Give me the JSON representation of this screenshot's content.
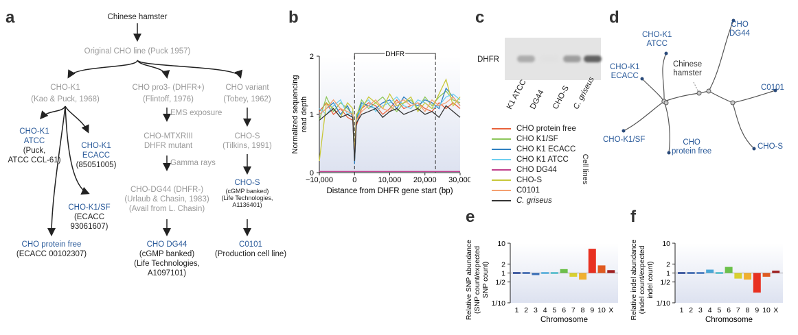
{
  "panel_labels": [
    "a",
    "b",
    "c",
    "d",
    "e",
    "f"
  ],
  "panel_a": {
    "root": "Chinese hamster",
    "original": "Original CHO line (Puck 1957)",
    "chok1": [
      "CHO-K1",
      "(Kao & Puck, 1968)"
    ],
    "pro3": [
      "CHO pro3- (DHFR+)",
      "(Flintoff, 1976)"
    ],
    "variant": [
      "CHO variant",
      "(Tobey, 1962)"
    ],
    "atcc": [
      "CHO-K1",
      "ATCC",
      "(Puck,",
      "ATCC CCL-61)"
    ],
    "ecacc": [
      "CHO-K1",
      "ECACC",
      "(85051005)"
    ],
    "k1sf": [
      "CHO-K1/SF",
      "(ECACC",
      "93061607)"
    ],
    "protein_free": [
      "CHO protein free",
      "(ECACC 00102307)"
    ],
    "ems": "EMS exposure",
    "mtx": [
      "CHO-MTXRIII",
      "DHFR mutant"
    ],
    "gamma": "Gamma rays",
    "dg44_mid": [
      "CHO-DG44 (DHFR-)",
      "(Urlaub & Chasin, 1983)",
      "(Avail from L. Chasin)"
    ],
    "dg44": [
      "CHO DG44",
      "(cGMP banked)",
      "(Life Technologies,",
      "A1097101)"
    ],
    "chos_mid": [
      "CHO-S",
      "(Tilkins, 1991)"
    ],
    "chos": [
      "CHO-S",
      "(cGMP banked)",
      "(Life Technologies,",
      "A1136401)"
    ],
    "c0101": [
      "C0101",
      "(Production cell line)"
    ]
  },
  "panel_c": {
    "row_label": "DHFR",
    "lanes": [
      "K1 ATCC",
      "DG44",
      "CHO-S",
      "C. griseus"
    ],
    "band_intensity": [
      0.35,
      0.0,
      0.45,
      0.85
    ],
    "legend_title": "Cell lines",
    "legend": [
      {
        "name": "CHO protein free",
        "color": "#e8603a"
      },
      {
        "name": "CHO K1/SF",
        "color": "#8cc65a"
      },
      {
        "name": "CHO K1 ECACC",
        "color": "#2e7fc0"
      },
      {
        "name": "CHO K1 ATCC",
        "color": "#6ecff0"
      },
      {
        "name": "CHO DG44",
        "color": "#c0408c"
      },
      {
        "name": "CHO-S",
        "color": "#c8c83a"
      },
      {
        "name": "C0101",
        "color": "#f4a070"
      },
      {
        "name": "C. griseus",
        "color": "#333333"
      }
    ]
  },
  "panel_d": {
    "nodes": [
      "CHO-K1\nATCC",
      "CHO\nDG44",
      "Chinese\nhamster",
      "CHO-K1\nECACC",
      "C0101",
      "CHO-K1/SF",
      "CHO\nprotein free",
      "CHO-S"
    ]
  },
  "chart_data": [
    {
      "type": "line",
      "panel": "b",
      "annotation": "DHFR",
      "xlabel": "Distance from DHFR gene start (bp)",
      "ylabel": "Normalized sequencing read depth",
      "xlim": [
        -10000,
        30000
      ],
      "ylim": [
        0,
        2
      ],
      "xticks": [
        "−10,000",
        "0",
        "10,000",
        "20,000",
        "30,000"
      ],
      "yticks": [
        "0",
        "1",
        "2"
      ],
      "dhfr_region": [
        0,
        23000
      ],
      "series": [
        {
          "name": "CHO protein free",
          "color": "#e8603a",
          "x": [
            -10000,
            -8000,
            -6000,
            -4000,
            -2000,
            -500,
            0,
            500,
            2000,
            4000,
            6000,
            8000,
            10000,
            12000,
            14000,
            16000,
            18000,
            20000,
            22000,
            24000,
            26000,
            28000,
            30000
          ],
          "y": [
            1.05,
            1.2,
            1.0,
            1.1,
            0.95,
            0.9,
            0.2,
            0.8,
            1.1,
            1.2,
            1.15,
            1.0,
            1.1,
            1.25,
            1.1,
            1.15,
            1.2,
            1.1,
            1.05,
            1.2,
            1.1,
            1.2,
            1.1
          ]
        },
        {
          "name": "CHO K1/SF",
          "color": "#8cc65a",
          "x": [
            -10000,
            -8000,
            -6000,
            -4000,
            -2000,
            -500,
            0,
            500,
            2000,
            4000,
            6000,
            8000,
            10000,
            12000,
            14000,
            16000,
            18000,
            20000,
            22000,
            24000,
            26000,
            28000,
            30000
          ],
          "y": [
            0.9,
            1.3,
            1.05,
            1.2,
            1.1,
            1.0,
            0.3,
            0.95,
            1.25,
            1.1,
            1.2,
            1.3,
            1.15,
            1.05,
            1.2,
            1.25,
            1.1,
            1.3,
            1.15,
            1.3,
            1.4,
            1.25,
            1.2
          ]
        },
        {
          "name": "CHO K1 ECACC",
          "color": "#2e7fc0",
          "x": [
            -10000,
            -8000,
            -6000,
            -4000,
            -2000,
            -500,
            0,
            500,
            2000,
            4000,
            6000,
            8000,
            10000,
            12000,
            14000,
            16000,
            18000,
            20000,
            22000,
            24000,
            26000,
            28000,
            30000
          ],
          "y": [
            1.0,
            1.1,
            1.2,
            1.0,
            1.15,
            0.95,
            0.15,
            0.9,
            1.2,
            1.15,
            1.1,
            1.2,
            1.25,
            1.1,
            1.3,
            1.2,
            1.15,
            1.25,
            1.2,
            1.1,
            1.45,
            1.3,
            1.15
          ]
        },
        {
          "name": "CHO K1 ATCC",
          "color": "#6ecff0",
          "x": [
            -10000,
            -8000,
            -6000,
            -4000,
            -2000,
            -500,
            0,
            500,
            2000,
            4000,
            6000,
            8000,
            10000,
            12000,
            14000,
            16000,
            18000,
            20000,
            22000,
            24000,
            26000,
            28000,
            30000
          ],
          "y": [
            1.1,
            1.0,
            1.15,
            1.25,
            1.0,
            1.05,
            0.2,
            0.85,
            1.15,
            1.25,
            1.05,
            1.15,
            1.2,
            1.3,
            1.15,
            1.1,
            1.25,
            1.2,
            1.1,
            1.15,
            1.3,
            1.35,
            1.25
          ]
        },
        {
          "name": "CHO DG44",
          "color": "#c0408c",
          "x": [
            -10000,
            30000
          ],
          "y": [
            0.02,
            0.02
          ]
        },
        {
          "name": "CHO-S",
          "color": "#c8c83a",
          "x": [
            -10000,
            -8000,
            -6000,
            -4000,
            -2000,
            -500,
            0,
            500,
            2000,
            4000,
            6000,
            8000,
            10000,
            12000,
            14000,
            16000,
            18000,
            20000,
            22000,
            24000,
            26000,
            28000,
            30000
          ],
          "y": [
            0.2,
            1.2,
            1.1,
            0.95,
            1.2,
            1.1,
            0.3,
            1.0,
            1.1,
            1.3,
            1.2,
            1.1,
            1.35,
            1.15,
            1.2,
            1.3,
            1.05,
            1.2,
            1.1,
            1.35,
            1.6,
            1.15,
            1.3
          ]
        },
        {
          "name": "C0101",
          "color": "#f4a070",
          "x": [
            -10000,
            -8000,
            -6000,
            -4000,
            -2000,
            -500,
            0,
            500,
            2000,
            4000,
            6000,
            8000,
            10000,
            12000,
            14000,
            16000,
            18000,
            20000,
            22000,
            24000,
            26000,
            28000,
            30000
          ],
          "y": [
            1.0,
            1.1,
            1.25,
            1.1,
            1.05,
            1.0,
            0.25,
            0.9,
            1.05,
            1.15,
            1.25,
            1.1,
            1.05,
            1.2,
            1.25,
            1.15,
            1.2,
            1.05,
            1.25,
            1.15,
            1.2,
            1.3,
            1.15
          ]
        },
        {
          "name": "C. griseus",
          "color": "#333333",
          "x": [
            -10000,
            -8000,
            -6000,
            -4000,
            -2000,
            -500,
            0,
            500,
            2000,
            4000,
            6000,
            8000,
            10000,
            12000,
            14000,
            16000,
            18000,
            20000,
            22000,
            24000,
            26000,
            28000,
            30000
          ],
          "y": [
            0.9,
            1.0,
            1.1,
            0.95,
            1.0,
            0.95,
            0.2,
            0.85,
            1.0,
            1.05,
            1.1,
            0.95,
            1.05,
            1.1,
            1.0,
            1.05,
            1.1,
            1.0,
            1.05,
            0.95,
            1.15,
            1.05,
            0.95
          ]
        }
      ]
    },
    {
      "type": "bar",
      "panel": "e",
      "ylabel": "Relative SNP abundance (SNP count/expected SNP count)",
      "xlabel": "Chromosome",
      "categories": [
        "1",
        "2",
        "3",
        "4",
        "5",
        "6",
        "7",
        "8",
        "9",
        "10",
        "X"
      ],
      "values": [
        1.05,
        0.9,
        0.85,
        1.05,
        0.9,
        1.35,
        0.75,
        0.6,
        6.5,
        1.8,
        1.25
      ],
      "yscale": "log",
      "ylim": [
        0.1,
        10
      ],
      "yticks": [
        "10",
        "2",
        "1",
        "1/2",
        "1/10"
      ]
    },
    {
      "type": "bar",
      "panel": "f",
      "ylabel": "Relative indel abundance (indel count/expected indel count)",
      "xlabel": "Chromosome",
      "categories": [
        "1",
        "2",
        "3",
        "4",
        "5",
        "6",
        "7",
        "8",
        "9",
        "10",
        "X"
      ],
      "values": [
        1.05,
        0.9,
        0.9,
        1.3,
        1.1,
        1.6,
        0.65,
        0.6,
        0.22,
        0.75,
        1.2
      ],
      "yscale": "log",
      "ylim": [
        0.1,
        10
      ],
      "yticks": [
        "10",
        "2",
        "1",
        "1/2",
        "1/10"
      ]
    }
  ]
}
